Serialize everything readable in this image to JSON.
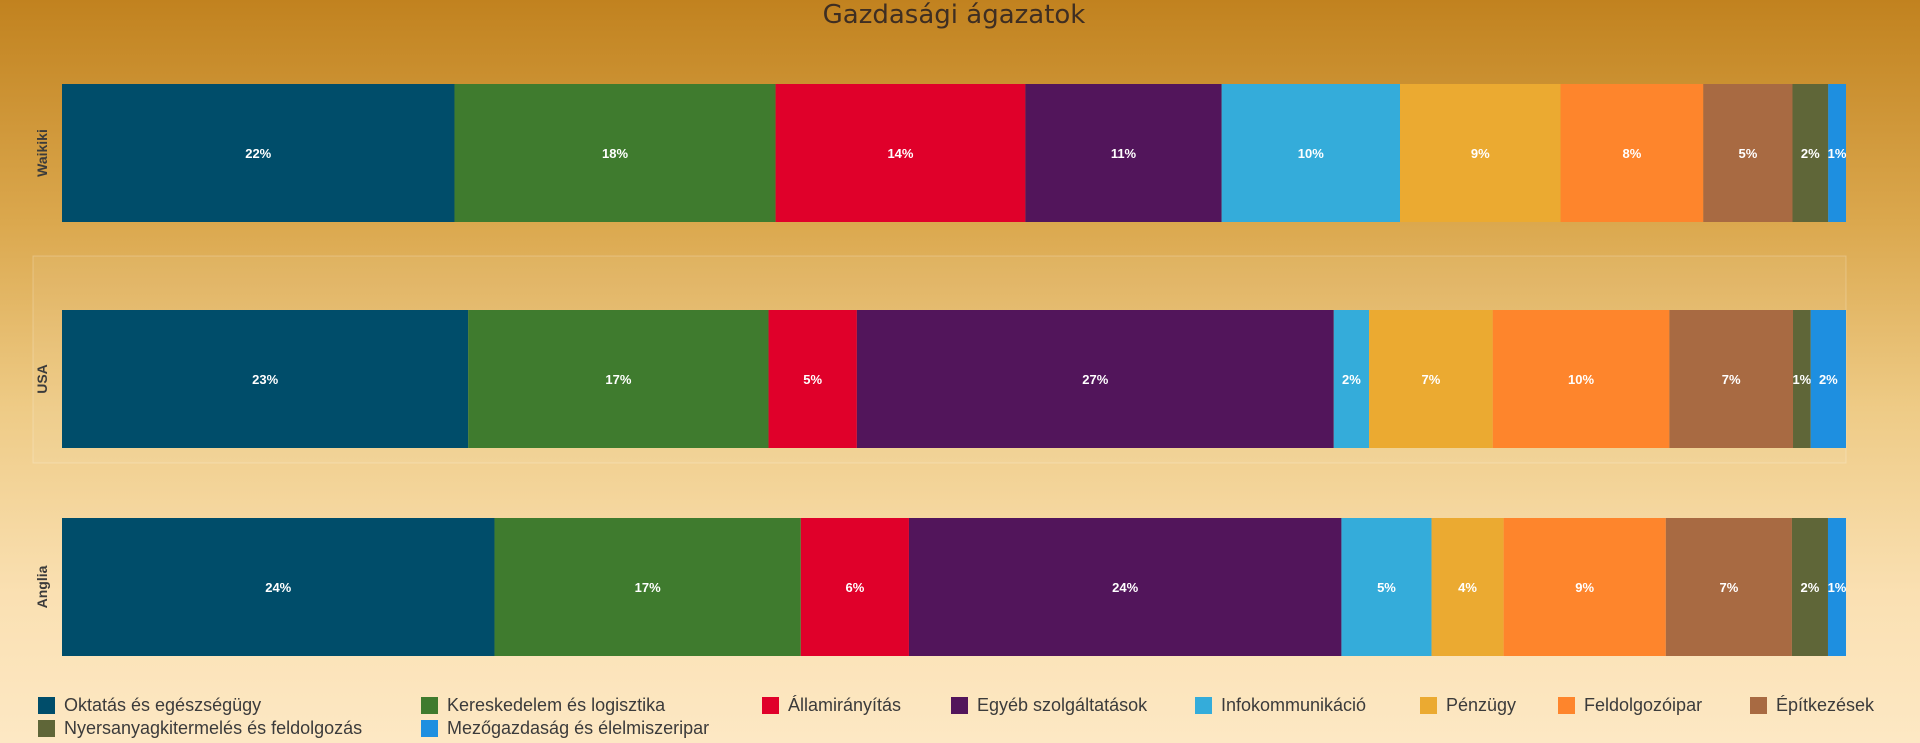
{
  "chart_data": {
    "type": "bar",
    "orientation": "horizontal",
    "stacked": true,
    "percent": true,
    "title": "Gazdasági ágazatok",
    "categories": [
      "Waikiki",
      "USA",
      "Anglia"
    ],
    "series": [
      {
        "name": "Oktatás és egészségügy",
        "color": "#004d6a",
        "values": [
          22,
          23,
          24
        ]
      },
      {
        "name": "Kereskedelem és logisztika",
        "color": "#3f7b2e",
        "values": [
          18,
          17,
          17
        ]
      },
      {
        "name": "Államirányítás",
        "color": "#e0002a",
        "values": [
          14,
          5,
          6
        ]
      },
      {
        "name": "Egyéb szolgáltatások",
        "color": "#52155b",
        "values": [
          11,
          27,
          24
        ]
      },
      {
        "name": "Infokommunikáció",
        "color": "#34acda",
        "values": [
          10,
          2,
          5
        ]
      },
      {
        "name": "Pénzügy",
        "color": "#ebaa31",
        "values": [
          9,
          7,
          4
        ]
      },
      {
        "name": "Feldolgozóipar",
        "color": "#fe852c",
        "values": [
          8,
          10,
          9
        ]
      },
      {
        "name": "Építkezések",
        "color": "#a86a42",
        "values": [
          5,
          7,
          7
        ]
      },
      {
        "name": "Nyersanyagkitermelés és feldolgozás",
        "color": "#5f6638",
        "values": [
          2,
          1,
          2
        ]
      },
      {
        "name": "Mezőgazdaság és élelmiszeripar",
        "color": "#1e8fe0",
        "values": [
          1,
          2,
          1
        ]
      }
    ],
    "legend": "bottom",
    "grid": false
  }
}
